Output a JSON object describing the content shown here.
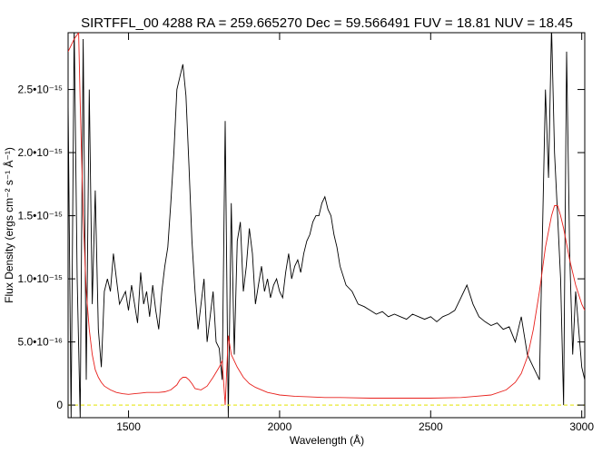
{
  "chart_data": {
    "type": "line",
    "title": "SIRTFFL_00 4288 RA = 259.665270 Dec =  59.566491 FUV = 18.81 NUV = 18.45",
    "xlabel": "Wavelength (Å)",
    "ylabel": "Flux Density (ergs cm⁻² s⁻¹ Å⁻¹)",
    "xlim": [
      1300,
      3010
    ],
    "ylim": [
      -1e-16,
      2.95e-15
    ],
    "x_ticks": [
      1500,
      2000,
      2500,
      3000
    ],
    "x_tick_labels": [
      "1500",
      "2000",
      "2500",
      "3000"
    ],
    "y_ticks": [
      0,
      5e-16,
      1e-15,
      1.5e-15,
      2e-15,
      2.5e-15
    ],
    "y_tick_labels": [
      "0",
      "5.0•10⁻¹⁶",
      "1.0•10⁻¹⁵",
      "1.5•10⁻¹⁵",
      "2.0•10⁻¹⁵",
      "2.5•10⁻¹⁵"
    ],
    "grid": false,
    "series": [
      {
        "color": "#000000",
        "x": [
          1300,
          1310,
          1320,
          1330,
          1340,
          1350,
          1360,
          1370,
          1380,
          1390,
          1400,
          1410,
          1420,
          1430,
          1440,
          1450,
          1460,
          1470,
          1480,
          1490,
          1500,
          1510,
          1520,
          1530,
          1540,
          1550,
          1560,
          1570,
          1580,
          1590,
          1600,
          1610,
          1620,
          1630,
          1640,
          1650,
          1660,
          1670,
          1680,
          1690,
          1700,
          1710,
          1720,
          1730,
          1740,
          1750,
          1760,
          1770,
          1780,
          1790,
          1800,
          1810,
          1820,
          1830,
          1840,
          1850,
          1860,
          1870,
          1880,
          1890,
          1900,
          1910,
          1920,
          1930,
          1940,
          1950,
          1960,
          1970,
          1980,
          1990,
          2000,
          2010,
          2020,
          2030,
          2040,
          2050,
          2060,
          2070,
          2080,
          2090,
          2100,
          2110,
          2120,
          2130,
          2140,
          2150,
          2160,
          2170,
          2180,
          2190,
          2200,
          2220,
          2240,
          2260,
          2280,
          2300,
          2320,
          2340,
          2360,
          2380,
          2400,
          2420,
          2440,
          2460,
          2480,
          2500,
          2520,
          2540,
          2560,
          2580,
          2600,
          2620,
          2640,
          2660,
          2680,
          2700,
          2720,
          2740,
          2760,
          2780,
          2800,
          2820,
          2840,
          2860,
          2880,
          2890,
          2900,
          2910,
          2920,
          2930,
          2940,
          2950,
          2960,
          2970,
          2980,
          2990,
          3000,
          3010
        ],
        "y": [
          2.4e-15,
          -1e-16,
          3e-15,
          1e-15,
          -1e-16,
          2.9e-15,
          2e-16,
          2.5e-15,
          8e-16,
          1.7e-15,
          6e-16,
          3e-16,
          9e-16,
          1e-15,
          9e-16,
          1.2e-15,
          1e-15,
          8e-16,
          8.5e-16,
          9e-16,
          7.5e-16,
          9.5e-16,
          8e-16,
          6.5e-16,
          1.05e-15,
          8e-16,
          9e-16,
          7e-16,
          9.5e-16,
          7.5e-16,
          6e-16,
          9e-16,
          1.1e-15,
          1.25e-15,
          1.6e-15,
          2e-15,
          2.5e-15,
          2.6e-15,
          2.7e-15,
          2.45e-15,
          1.9e-15,
          1.3e-15,
          9e-16,
          6e-16,
          8e-16,
          1e-15,
          5e-16,
          7e-16,
          9e-16,
          5e-16,
          4.5e-16,
          2e-16,
          2.25e-15,
          -1e-16,
          1.6e-15,
          4e-16,
          1.3e-15,
          1.45e-15,
          9e-16,
          1.1e-15,
          1.4e-15,
          1.2e-15,
          8e-16,
          9.5e-16,
          1.1e-15,
          9e-16,
          1e-15,
          8.5e-16,
          9.5e-16,
          1e-15,
          9e-16,
          8.5e-16,
          1.05e-15,
          1.2e-15,
          1e-15,
          1.1e-15,
          1.15e-15,
          1.05e-15,
          1.2e-15,
          1.3e-15,
          1.35e-15,
          1.45e-15,
          1.5e-15,
          1.5e-15,
          1.6e-15,
          1.65e-15,
          1.55e-15,
          1.5e-15,
          1.35e-15,
          1.25e-15,
          1.1e-15,
          9.5e-16,
          9e-16,
          8e-16,
          7.8e-16,
          7.5e-16,
          7.2e-16,
          7.4e-16,
          7e-16,
          7.2e-16,
          7e-16,
          6.8e-16,
          7.2e-16,
          7e-16,
          6.8e-16,
          7e-16,
          6.6e-16,
          7e-16,
          7.2e-16,
          7.5e-16,
          8.5e-16,
          9.5e-16,
          8e-16,
          7e-16,
          6.6e-16,
          6.3e-16,
          6.5e-16,
          6e-16,
          6.2e-16,
          5e-16,
          7e-16,
          4e-16,
          3e-16,
          2e-16,
          2.5e-15,
          1.8e-15,
          3e-15,
          2e-15,
          1.5e-15,
          1e-15,
          0.0,
          2.8e-15,
          1.2e-15,
          4e-16,
          9e-16,
          6e-16,
          3e-16,
          2e-16
        ]
      },
      {
        "color": "#e8201c",
        "x": [
          1300,
          1320,
          1335,
          1340,
          1350,
          1360,
          1370,
          1380,
          1390,
          1400,
          1410,
          1420,
          1440,
          1460,
          1480,
          1500,
          1520,
          1540,
          1560,
          1580,
          1600,
          1620,
          1640,
          1660,
          1670,
          1680,
          1690,
          1700,
          1710,
          1720,
          1740,
          1760,
          1780,
          1800,
          1810,
          1820,
          1830,
          1840,
          1860,
          1880,
          1900,
          1920,
          1940,
          1960,
          1980,
          2000,
          2050,
          2100,
          2150,
          2200,
          2300,
          2400,
          2500,
          2600,
          2650,
          2700,
          2750,
          2780,
          2800,
          2820,
          2840,
          2860,
          2880,
          2900,
          2910,
          2920,
          2930,
          2940,
          2960,
          2980,
          3000,
          3010
        ],
        "y": [
          2.8e-15,
          2.9e-15,
          2.95e-15,
          2.4e-15,
          1.5e-15,
          9e-16,
          6e-16,
          4e-16,
          2.8e-16,
          2.2e-16,
          1.8e-16,
          1.5e-16,
          1.2e-16,
          1e-16,
          9e-17,
          8.5e-17,
          9e-17,
          9.5e-17,
          1e-16,
          1e-16,
          1e-16,
          1.05e-16,
          1.2e-16,
          1.6e-16,
          2e-16,
          2.2e-16,
          2.2e-16,
          2e-16,
          1.7e-16,
          1.3e-16,
          1.2e-16,
          1.5e-16,
          2.2e-16,
          3e-16,
          3.5e-16,
          0.0,
          5.5e-16,
          4e-16,
          3e-16,
          2.2e-16,
          1.7e-16,
          1.4e-16,
          1.2e-16,
          1e-16,
          9e-17,
          8e-17,
          7e-17,
          6.5e-17,
          6e-17,
          6e-17,
          5.5e-17,
          5.5e-17,
          5.5e-17,
          6e-17,
          7e-17,
          8e-17,
          1.2e-16,
          1.8e-16,
          2.5e-16,
          3.8e-16,
          6e-16,
          9e-16,
          1.25e-15,
          1.5e-15,
          1.58e-15,
          1.58e-15,
          1.5e-15,
          1.4e-15,
          1.15e-15,
          9.5e-16,
          8e-16,
          7.5e-16
        ]
      },
      {
        "color": "#e8e830",
        "style": "dashed",
        "x": [
          1300,
          3010
        ],
        "y": [
          0,
          0
        ]
      }
    ]
  }
}
